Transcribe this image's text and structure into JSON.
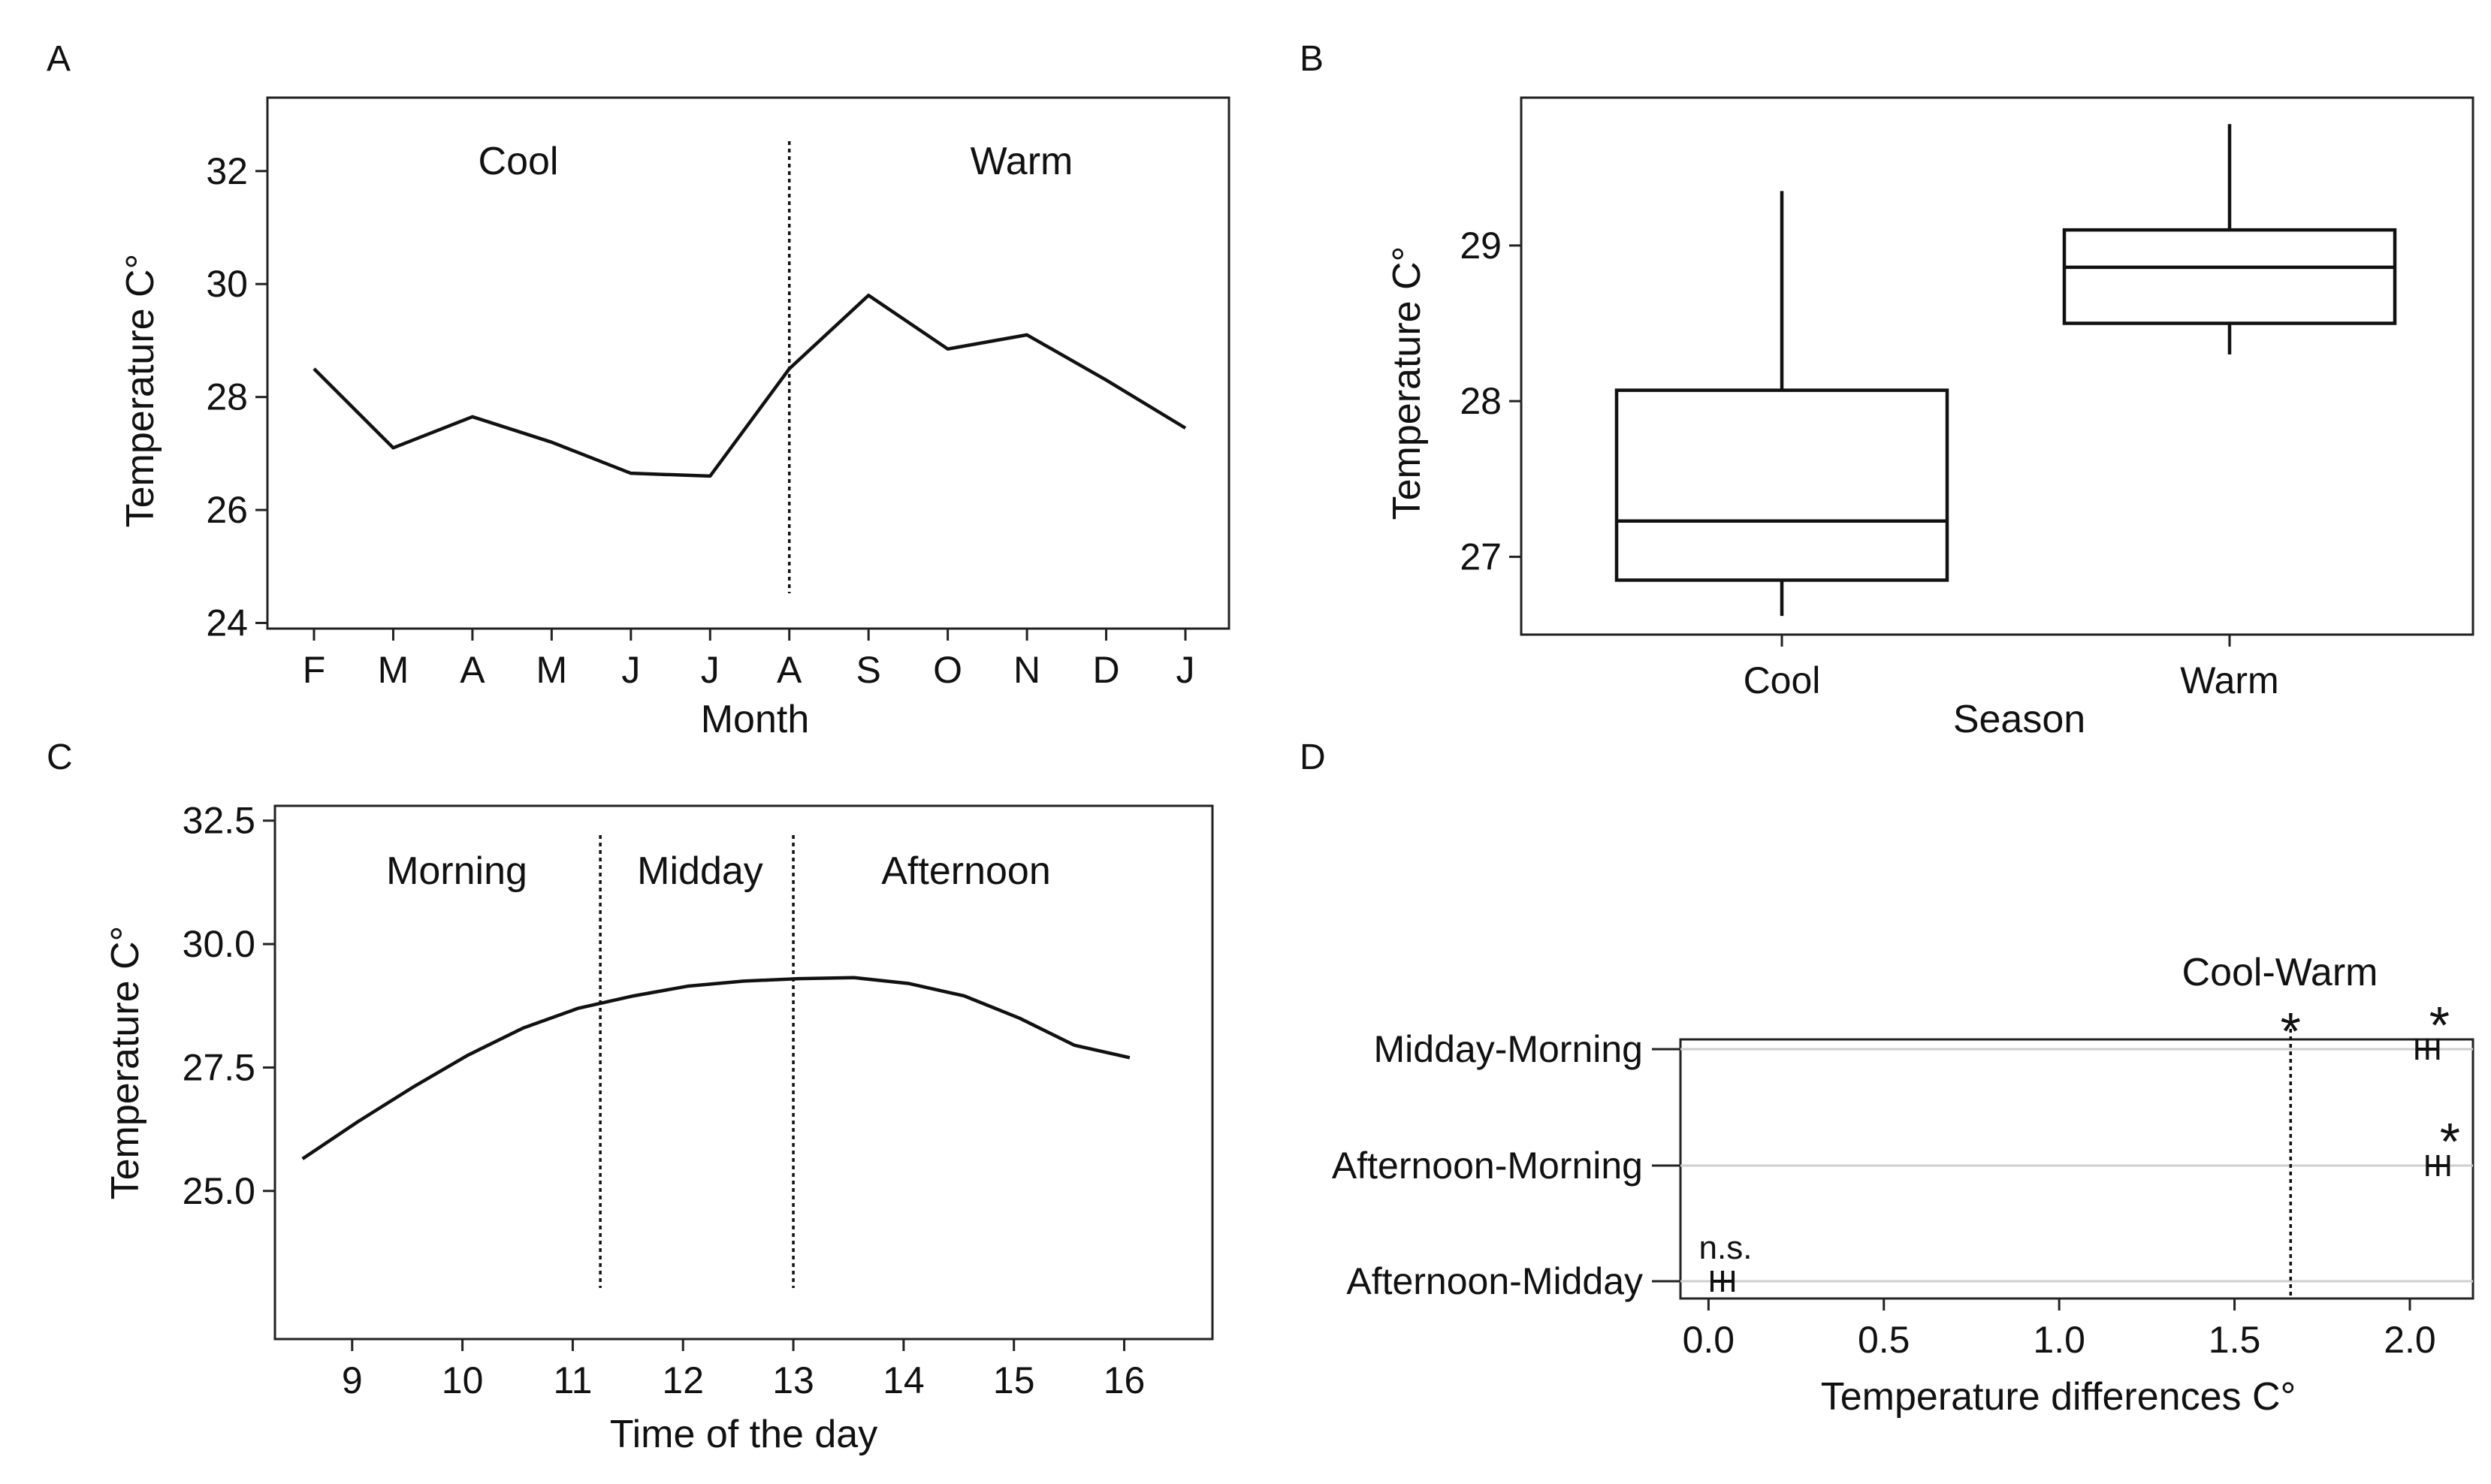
{
  "chart_data": [
    {
      "panel": "A",
      "type": "line",
      "xlabel": "Month",
      "ylabel": "Temperature C°",
      "ylim": [
        23.9,
        33.3
      ],
      "yticks": [
        24,
        26,
        28,
        30,
        32
      ],
      "categories": [
        "F",
        "M",
        "A",
        "M",
        "J",
        "J",
        "A",
        "S",
        "O",
        "N",
        "D",
        "J"
      ],
      "values": [
        28.5,
        27.1,
        27.65,
        27.2,
        26.65,
        26.6,
        28.5,
        29.8,
        28.85,
        29.1,
        28.3,
        27.45
      ],
      "divider_after_index": 6,
      "divider_label_left": "Cool",
      "divider_label_right": "Warm"
    },
    {
      "panel": "B",
      "type": "box",
      "xlabel": "Season",
      "ylabel": "Temperature C°",
      "ylim": [
        26.5,
        29.95
      ],
      "yticks": [
        27,
        28,
        29
      ],
      "categories": [
        "Cool",
        "Warm"
      ],
      "boxes": [
        {
          "name": "Cool",
          "min": 26.62,
          "q1": 26.85,
          "median": 27.23,
          "q3": 28.07,
          "max": 29.35
        },
        {
          "name": "Warm",
          "min": 28.3,
          "q1": 28.5,
          "median": 28.86,
          "q3": 29.1,
          "max": 29.78
        }
      ]
    },
    {
      "panel": "C",
      "type": "line",
      "xlabel": "Time of the day",
      "ylabel": "Temperature C°",
      "xlim": [
        8.3,
        16.8
      ],
      "ylim": [
        22.0,
        32.8
      ],
      "xticks": [
        9,
        10,
        11,
        12,
        13,
        14,
        15,
        16
      ],
      "yticks": [
        25.0,
        27.5,
        30.0,
        32.5
      ],
      "ytick_labels": [
        "25.0",
        "27.5",
        "30.0",
        "32.5"
      ],
      "x": [
        8.55,
        9.05,
        9.55,
        10.05,
        10.55,
        11.05,
        11.55,
        12.05,
        12.55,
        13.05,
        13.55,
        14.05,
        14.55,
        15.05,
        15.55,
        16.05
      ],
      "values": [
        25.65,
        26.4,
        27.1,
        27.75,
        28.3,
        28.7,
        28.95,
        29.15,
        29.25,
        29.3,
        29.32,
        29.2,
        28.95,
        28.5,
        27.95,
        27.7
      ],
      "dividers": [
        11.25,
        13.0
      ],
      "period_labels": [
        "Morning",
        "Midday",
        "Afternoon"
      ]
    },
    {
      "panel": "D",
      "type": "interval",
      "title": "Cool-Warm",
      "xlabel": "Temperature differences C°",
      "xlim": [
        -0.08,
        2.18
      ],
      "xticks": [
        0.0,
        0.5,
        1.0,
        1.5,
        2.0
      ],
      "xtick_labels": [
        "0.0",
        "0.5",
        "1.0",
        "1.5",
        "2.0"
      ],
      "reference_line": 1.66,
      "reference_mark": "*",
      "rows": [
        {
          "label": "Midday-Morning",
          "low": 2.02,
          "estimate": 2.05,
          "high": 2.08,
          "mark": "*"
        },
        {
          "label": "Afternoon-Morning",
          "low": 2.05,
          "estimate": 2.08,
          "high": 2.11,
          "mark": "*"
        },
        {
          "label": "Afternoon-Midday",
          "low": 0.01,
          "estimate": 0.04,
          "high": 0.07,
          "mark": "n.s."
        }
      ]
    }
  ]
}
